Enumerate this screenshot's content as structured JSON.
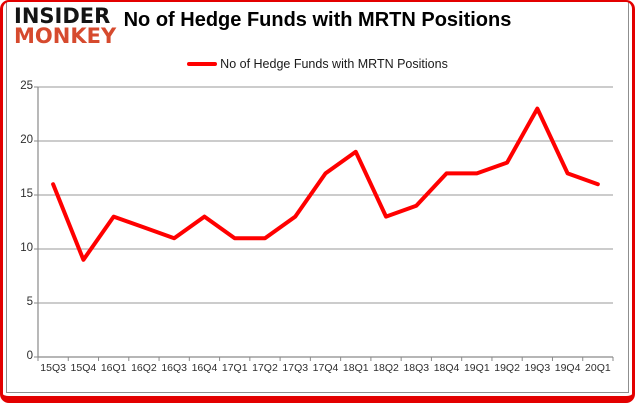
{
  "logo": {
    "line1": "INSIDER",
    "line2": "MONKEY"
  },
  "title": "No of Hedge Funds with MRTN Positions",
  "legend": {
    "label": "No of Hedge Funds with MRTN Positions"
  },
  "colors": {
    "series": "#ff0000",
    "highlight_border": "#e30000",
    "logo_accent": "#d64a2e",
    "logo_main": "#141414",
    "gridline": "#999999",
    "axis": "#8a8a8a",
    "tick_text": "#2e2e2e"
  },
  "chart_data": {
    "type": "line",
    "title": "No of Hedge Funds with MRTN Positions",
    "categories": [
      "15Q3",
      "15Q4",
      "16Q1",
      "16Q2",
      "16Q3",
      "16Q4",
      "17Q1",
      "17Q2",
      "17Q3",
      "17Q4",
      "18Q1",
      "18Q2",
      "18Q3",
      "18Q4",
      "19Q1",
      "19Q2",
      "19Q3",
      "19Q4",
      "20Q1"
    ],
    "series": [
      {
        "name": "No of Hedge Funds with MRTN Positions",
        "values": [
          16,
          9,
          13,
          12,
          11,
          13,
          11,
          11,
          13,
          17,
          19,
          13,
          14,
          17,
          17,
          18,
          23,
          17,
          16
        ]
      }
    ],
    "xlabel": "",
    "ylabel": "",
    "ylim": [
      0,
      25
    ],
    "ytick_step": 5,
    "grid": true,
    "legend_position": "top-center"
  }
}
